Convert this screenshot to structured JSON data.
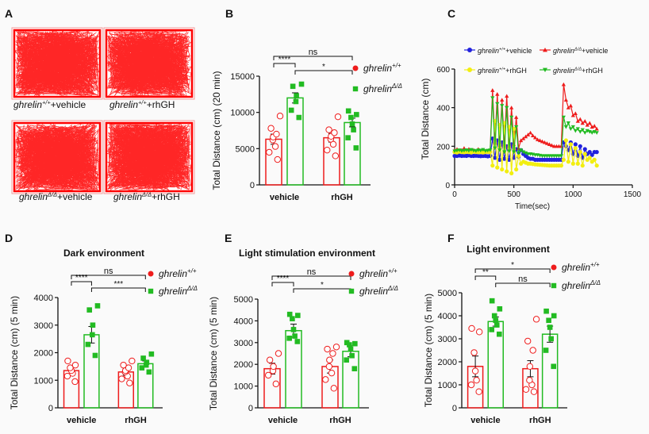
{
  "colors": {
    "red": "#ee1c1c",
    "green": "#22bb22",
    "blue": "#2222dd",
    "yellow": "#f2ee10",
    "axis": "#111111",
    "track": "#ff0000"
  },
  "panel_labels": [
    "A",
    "B",
    "C",
    "D",
    "E",
    "F"
  ],
  "track_captions": [
    {
      "gene": "ghrelin",
      "sup": "+/+",
      "tail": "+vehicle"
    },
    {
      "gene": "ghrelin",
      "sup": "+/+",
      "tail": "+rhGH"
    },
    {
      "gene": "ghrelin",
      "sup": "Δ/Δ",
      "tail": "+vehicle"
    },
    {
      "gene": "ghrelin",
      "sup": "Δ/Δ",
      "tail": "+rhGH"
    }
  ],
  "chart_data": [
    {
      "id": "B",
      "type": "bar",
      "title": "",
      "ylabel": "Total Distance (cm) (20 min)",
      "ylim": [
        0,
        15000
      ],
      "yticks": [
        "0",
        "5000",
        "10000",
        "15000"
      ],
      "categories": [
        "vehicle",
        "rhGH"
      ],
      "series": [
        {
          "name": "ghrelin+/+",
          "sup": "+/+",
          "marker": "circle",
          "means": [
            6300,
            6500
          ],
          "sem": [
            700,
            600
          ],
          "points": [
            [
              3500,
              4500,
              5300,
              6200,
              6600,
              7000,
              7800,
              9500
            ],
            [
              4000,
              4800,
              5600,
              6300,
              6700,
              7200,
              7600,
              9400
            ]
          ]
        },
        {
          "name": "ghrelinΔ/Δ",
          "sup": "Δ/Δ",
          "marker": "square",
          "means": [
            12000,
            8600
          ],
          "sem": [
            700,
            600
          ],
          "points": [
            [
              9300,
              10300,
              11500,
              12300,
              13600,
              13900
            ],
            [
              5100,
              6500,
              7600,
              8400,
              9300,
              9700,
              10200
            ]
          ]
        }
      ],
      "significance": [
        {
          "label": "ns",
          "from": "vehicle:ghrelin+/+",
          "to": "rhGH:ghrelinΔ/Δ"
        },
        {
          "label": "****",
          "from": "vehicle:ghrelin+/+",
          "to": "vehicle:ghrelinΔ/Δ"
        },
        {
          "label": "*",
          "from": "vehicle:ghrelinΔ/Δ",
          "to": "rhGH:ghrelinΔ/Δ"
        }
      ]
    },
    {
      "id": "C",
      "type": "line",
      "title": "",
      "xlabel": "Time(sec)",
      "ylabel": "Total Distance (cm)",
      "xlim": [
        0,
        1500
      ],
      "ylim": [
        0,
        600
      ],
      "xticks": [
        "0",
        "500",
        "1000",
        "1500"
      ],
      "yticks": [
        "0",
        "200",
        "400",
        "600"
      ],
      "series": [
        {
          "name": "ghrelin+/+ +vehicle",
          "label_gene": "ghrelin",
          "label_sup": "+/+",
          "label_tail": "+vehicle",
          "color": "#2222dd",
          "marker": "circle",
          "x": [
            0,
            20,
            40,
            60,
            80,
            100,
            120,
            140,
            160,
            180,
            200,
            220,
            240,
            260,
            280,
            300,
            320,
            340,
            360,
            380,
            400,
            420,
            440,
            460,
            480,
            500,
            520,
            540,
            560,
            580,
            600,
            620,
            640,
            660,
            680,
            700,
            720,
            740,
            760,
            780,
            800,
            820,
            840,
            860,
            880,
            900,
            920,
            940,
            960,
            980,
            1000,
            1020,
            1040,
            1060,
            1080,
            1100,
            1120,
            1140,
            1160,
            1180,
            1200
          ],
          "y": [
            150,
            150,
            152,
            150,
            151,
            150,
            153,
            150,
            150,
            151,
            150,
            149,
            150,
            150,
            148,
            150,
            240,
            140,
            230,
            130,
            220,
            135,
            200,
            130,
            210,
            140,
            185,
            145,
            180,
            160,
            150,
            140,
            135,
            135,
            130,
            130,
            130,
            130,
            130,
            130,
            130,
            130,
            130,
            130,
            130,
            130,
            220,
            200,
            180,
            220,
            160,
            210,
            150,
            200,
            140,
            185,
            160,
            170,
            155,
            170,
            170
          ]
        },
        {
          "name": "ghrelinΔ/Δ +vehicle",
          "label_gene": "ghrelin",
          "label_sup": "Δ/Δ",
          "label_tail": "+vehicle",
          "color": "#ee1c1c",
          "marker": "triangle-up",
          "x": [
            0,
            20,
            40,
            60,
            80,
            100,
            120,
            140,
            160,
            180,
            200,
            220,
            240,
            260,
            280,
            300,
            320,
            340,
            360,
            380,
            400,
            420,
            440,
            460,
            480,
            500,
            520,
            540,
            560,
            580,
            600,
            620,
            640,
            660,
            680,
            700,
            720,
            740,
            760,
            780,
            800,
            820,
            840,
            860,
            880,
            900,
            920,
            940,
            960,
            980,
            1000,
            1020,
            1040,
            1060,
            1080,
            1100,
            1120,
            1140,
            1160,
            1180,
            1200
          ],
          "y": [
            180,
            185,
            175,
            180,
            190,
            180,
            185,
            175,
            180,
            170,
            185,
            175,
            180,
            175,
            170,
            180,
            490,
            220,
            470,
            200,
            440,
            210,
            460,
            200,
            400,
            210,
            350,
            190,
            230,
            240,
            250,
            260,
            270,
            255,
            245,
            235,
            230,
            225,
            220,
            215,
            210,
            205,
            200,
            200,
            200,
            200,
            520,
            440,
            400,
            410,
            360,
            370,
            330,
            340,
            320,
            330,
            310,
            320,
            300,
            305,
            290
          ]
        },
        {
          "name": "ghrelin+/+ +rhGH",
          "label_gene": "ghrelin",
          "label_sup": "+/+",
          "label_tail": "+rhGH",
          "color": "#f2ee10",
          "marker": "circle",
          "x": [
            0,
            20,
            40,
            60,
            80,
            100,
            120,
            140,
            160,
            180,
            200,
            220,
            240,
            260,
            280,
            300,
            320,
            340,
            360,
            380,
            400,
            420,
            440,
            460,
            480,
            500,
            520,
            540,
            560,
            580,
            600,
            620,
            640,
            660,
            680,
            700,
            720,
            740,
            760,
            780,
            800,
            820,
            840,
            860,
            880,
            900,
            920,
            940,
            960,
            980,
            1000,
            1020,
            1040,
            1060,
            1080,
            1100,
            1120,
            1140,
            1160,
            1180,
            1200
          ],
          "y": [
            170,
            168,
            172,
            170,
            169,
            171,
            170,
            168,
            172,
            170,
            169,
            170,
            168,
            170,
            171,
            170,
            100,
            330,
            90,
            310,
            80,
            320,
            70,
            300,
            60,
            290,
            80,
            150,
            110,
            120,
            115,
            110,
            110,
            108,
            106,
            105,
            104,
            103,
            102,
            101,
            100,
            100,
            100,
            100,
            100,
            100,
            130,
            230,
            120,
            210,
            110,
            190,
            110,
            170,
            100,
            160,
            130,
            140,
            120,
            130,
            100
          ]
        },
        {
          "name": "ghrelinΔ/Δ +rhGH",
          "label_gene": "ghrelin",
          "label_sup": "Δ/Δ",
          "label_tail": "+rhGH",
          "color": "#22bb22",
          "marker": "triangle-down",
          "x": [
            0,
            20,
            40,
            60,
            80,
            100,
            120,
            140,
            160,
            180,
            200,
            220,
            240,
            260,
            280,
            300,
            320,
            340,
            360,
            380,
            400,
            420,
            440,
            460,
            480,
            500,
            520,
            540,
            560,
            580,
            600,
            620,
            640,
            660,
            680,
            700,
            720,
            740,
            760,
            780,
            800,
            820,
            840,
            860,
            880,
            900,
            920,
            940,
            960,
            980,
            1000,
            1020,
            1040,
            1060,
            1080,
            1100,
            1120,
            1140,
            1160,
            1180,
            1200
          ],
          "y": [
            175,
            178,
            180,
            176,
            178,
            180,
            177,
            182,
            178,
            176,
            180,
            178,
            182,
            176,
            178,
            180,
            450,
            190,
            420,
            180,
            410,
            170,
            400,
            175,
            350,
            170,
            300,
            165,
            180,
            170,
            165,
            160,
            160,
            158,
            155,
            155,
            152,
            150,
            150,
            150,
            150,
            150,
            150,
            150,
            150,
            150,
            350,
            300,
            320,
            290,
            300,
            280,
            290,
            275,
            285,
            270,
            280,
            275,
            270,
            275,
            270
          ]
        }
      ]
    },
    {
      "id": "D",
      "type": "bar",
      "title": "Dark environment",
      "ylabel": "Total Distance (cm) (5 min)",
      "ylim": [
        0,
        4000
      ],
      "yticks": [
        "0",
        "1000",
        "2000",
        "3000",
        "4000"
      ],
      "categories": [
        "vehicle",
        "rhGH"
      ],
      "series": [
        {
          "name": "ghrelin+/+",
          "sup": "+/+",
          "marker": "circle",
          "means": [
            1350,
            1300
          ],
          "sem": [
            150,
            120
          ],
          "points": [
            [
              950,
              1150,
              1250,
              1350,
              1450,
              1550,
              1700
            ],
            [
              900,
              1050,
              1150,
              1300,
              1350,
              1450,
              1550,
              1700
            ]
          ]
        },
        {
          "name": "ghrelinΔ/Δ",
          "sup": "Δ/Δ",
          "marker": "square",
          "means": [
            2650,
            1600
          ],
          "sem": [
            300,
            100
          ],
          "points": [
            [
              1900,
              2300,
              2650,
              3000,
              3550,
              3700
            ],
            [
              1300,
              1450,
              1550,
              1650,
              1800,
              1950
            ]
          ]
        }
      ],
      "significance": [
        {
          "label": "ns",
          "from": "vehicle:ghrelin+/+",
          "to": "rhGH:ghrelinΔ/Δ"
        },
        {
          "label": "****",
          "from": "vehicle:ghrelin+/+",
          "to": "vehicle:ghrelinΔ/Δ"
        },
        {
          "label": "***",
          "from": "vehicle:ghrelinΔ/Δ",
          "to": "rhGH:ghrelinΔ/Δ"
        }
      ]
    },
    {
      "id": "E",
      "type": "bar",
      "title": "Light stimulation environment",
      "ylabel": "Total Distance (cm) (5 min)",
      "ylim": [
        0,
        5000
      ],
      "yticks": [
        "0",
        "1000",
        "2000",
        "3000",
        "4000",
        "5000"
      ],
      "categories": [
        "vehicle",
        "rhGH"
      ],
      "series": [
        {
          "name": "ghrelin+/+",
          "sup": "+/+",
          "marker": "circle",
          "means": [
            1800,
            1900
          ],
          "sem": [
            250,
            300
          ],
          "points": [
            [
              1100,
              1500,
              1700,
              1900,
              2200,
              2500
            ],
            [
              900,
              1300,
              1600,
              1900,
              2200,
              2500,
              2700,
              2800
            ]
          ]
        },
        {
          "name": "ghrelinΔ/Δ",
          "sup": "Δ/Δ",
          "marker": "square",
          "means": [
            3550,
            2600
          ],
          "sem": [
            300,
            250
          ],
          "points": [
            [
              3050,
              3200,
              3300,
              3600,
              4100,
              4250,
              4300
            ],
            [
              1800,
              2200,
              2400,
              2700,
              2900,
              2950,
              3000
            ]
          ]
        }
      ],
      "significance": [
        {
          "label": "ns",
          "from": "vehicle:ghrelin+/+",
          "to": "rhGH:ghrelinΔ/Δ"
        },
        {
          "label": "****",
          "from": "vehicle:ghrelin+/+",
          "to": "vehicle:ghrelinΔ/Δ"
        },
        {
          "label": "*",
          "from": "vehicle:ghrelinΔ/Δ",
          "to": "rhGH:ghrelinΔ/Δ"
        }
      ]
    },
    {
      "id": "F",
      "type": "bar",
      "title": "Light environment",
      "ylabel": "Total Distance (cm) (5 min)",
      "ylim": [
        0,
        5000
      ],
      "yticks": [
        "0",
        "1000",
        "2000",
        "3000",
        "4000",
        "5000"
      ],
      "categories": [
        "vehicle",
        "rhGH"
      ],
      "series": [
        {
          "name": "ghrelin+/+",
          "sup": "+/+",
          "marker": "circle",
          "means": [
            1800,
            1700
          ],
          "sem": [
            450,
            350
          ],
          "points": [
            [
              700,
              1000,
              1200,
              1600,
              2400,
              3300,
              3450
            ],
            [
              700,
              800,
              1000,
              1200,
              1800,
              2500,
              2900,
              3850
            ]
          ]
        },
        {
          "name": "ghrelinΔ/Δ",
          "sup": "Δ/Δ",
          "marker": "square",
          "means": [
            3750,
            3200
          ],
          "sem": [
            200,
            350
          ],
          "points": [
            [
              3200,
              3400,
              3600,
              3800,
              4000,
              4300,
              4650
            ],
            [
              1800,
              2500,
              3000,
              3500,
              3800,
              4000,
              4200
            ]
          ]
        }
      ],
      "significance": [
        {
          "label": "*",
          "from": "vehicle:ghrelin+/+",
          "to": "rhGH:ghrelinΔ/Δ"
        },
        {
          "label": "**",
          "from": "vehicle:ghrelin+/+",
          "to": "vehicle:ghrelinΔ/Δ"
        },
        {
          "label": "ns",
          "from": "vehicle:ghrelinΔ/Δ",
          "to": "rhGH:ghrelinΔ/Δ"
        }
      ]
    }
  ]
}
